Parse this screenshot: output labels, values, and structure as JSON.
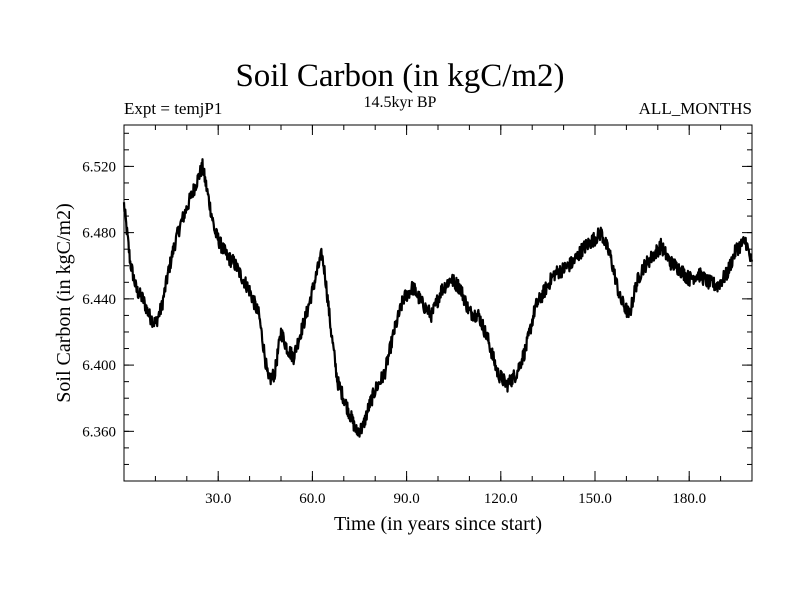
{
  "chart_data": {
    "type": "line",
    "title": "Soil Carbon (in kgC/m2)",
    "subtitle_left": "Expt = temjP1",
    "subtitle_center": "14.5kyr BP",
    "subtitle_right": "ALL_MONTHS",
    "xlabel": "Time (in years since start)",
    "ylabel": "Soil Carbon (in kgC/m2)",
    "xlim": [
      0,
      200
    ],
    "ylim": [
      6.33,
      6.545
    ],
    "x_ticks": [
      30,
      60,
      90,
      120,
      150,
      180
    ],
    "x_tick_labels": [
      "30.0",
      "60.0",
      "90.0",
      "120.0",
      "150.0",
      "180.0"
    ],
    "y_ticks": [
      6.36,
      6.4,
      6.44,
      6.48,
      6.52
    ],
    "y_tick_labels": [
      "6.360",
      "6.400",
      "6.440",
      "6.480",
      "6.520"
    ],
    "grid": false,
    "legend": "none",
    "line_color": "#000000",
    "series": [
      {
        "x": [
          0,
          2,
          4,
          6,
          8,
          10,
          12,
          14,
          16,
          18,
          20,
          22,
          24,
          25,
          27,
          29,
          31,
          33,
          35,
          37,
          40,
          43,
          46,
          48,
          50,
          52,
          54,
          56,
          58,
          60,
          62,
          63,
          64,
          66,
          68,
          70,
          72,
          74,
          76,
          78,
          80,
          83,
          86,
          89,
          92,
          95,
          98,
          101,
          104,
          107,
          110,
          113,
          116,
          119,
          122,
          125,
          128,
          131,
          134,
          137,
          140,
          143,
          146,
          149,
          152,
          155,
          158,
          161,
          163,
          165,
          168,
          171,
          174,
          177,
          180,
          183,
          186,
          189,
          192,
          195,
          198,
          200
        ],
        "y": [
          6.497,
          6.462,
          6.445,
          6.44,
          6.43,
          6.425,
          6.435,
          6.455,
          6.472,
          6.485,
          6.495,
          6.505,
          6.515,
          6.52,
          6.5,
          6.48,
          6.472,
          6.465,
          6.462,
          6.455,
          6.445,
          6.43,
          6.39,
          6.395,
          6.42,
          6.41,
          6.405,
          6.418,
          6.43,
          6.445,
          6.46,
          6.467,
          6.455,
          6.42,
          6.39,
          6.38,
          6.37,
          6.36,
          6.362,
          6.375,
          6.385,
          6.395,
          6.42,
          6.44,
          6.447,
          6.437,
          6.43,
          6.445,
          6.452,
          6.447,
          6.432,
          6.43,
          6.415,
          6.395,
          6.388,
          6.395,
          6.41,
          6.435,
          6.445,
          6.455,
          6.458,
          6.462,
          6.47,
          6.475,
          6.48,
          6.465,
          6.44,
          6.43,
          6.448,
          6.458,
          6.465,
          6.472,
          6.462,
          6.458,
          6.452,
          6.455,
          6.45,
          6.448,
          6.455,
          6.47,
          6.475,
          6.46
        ]
      }
    ]
  }
}
